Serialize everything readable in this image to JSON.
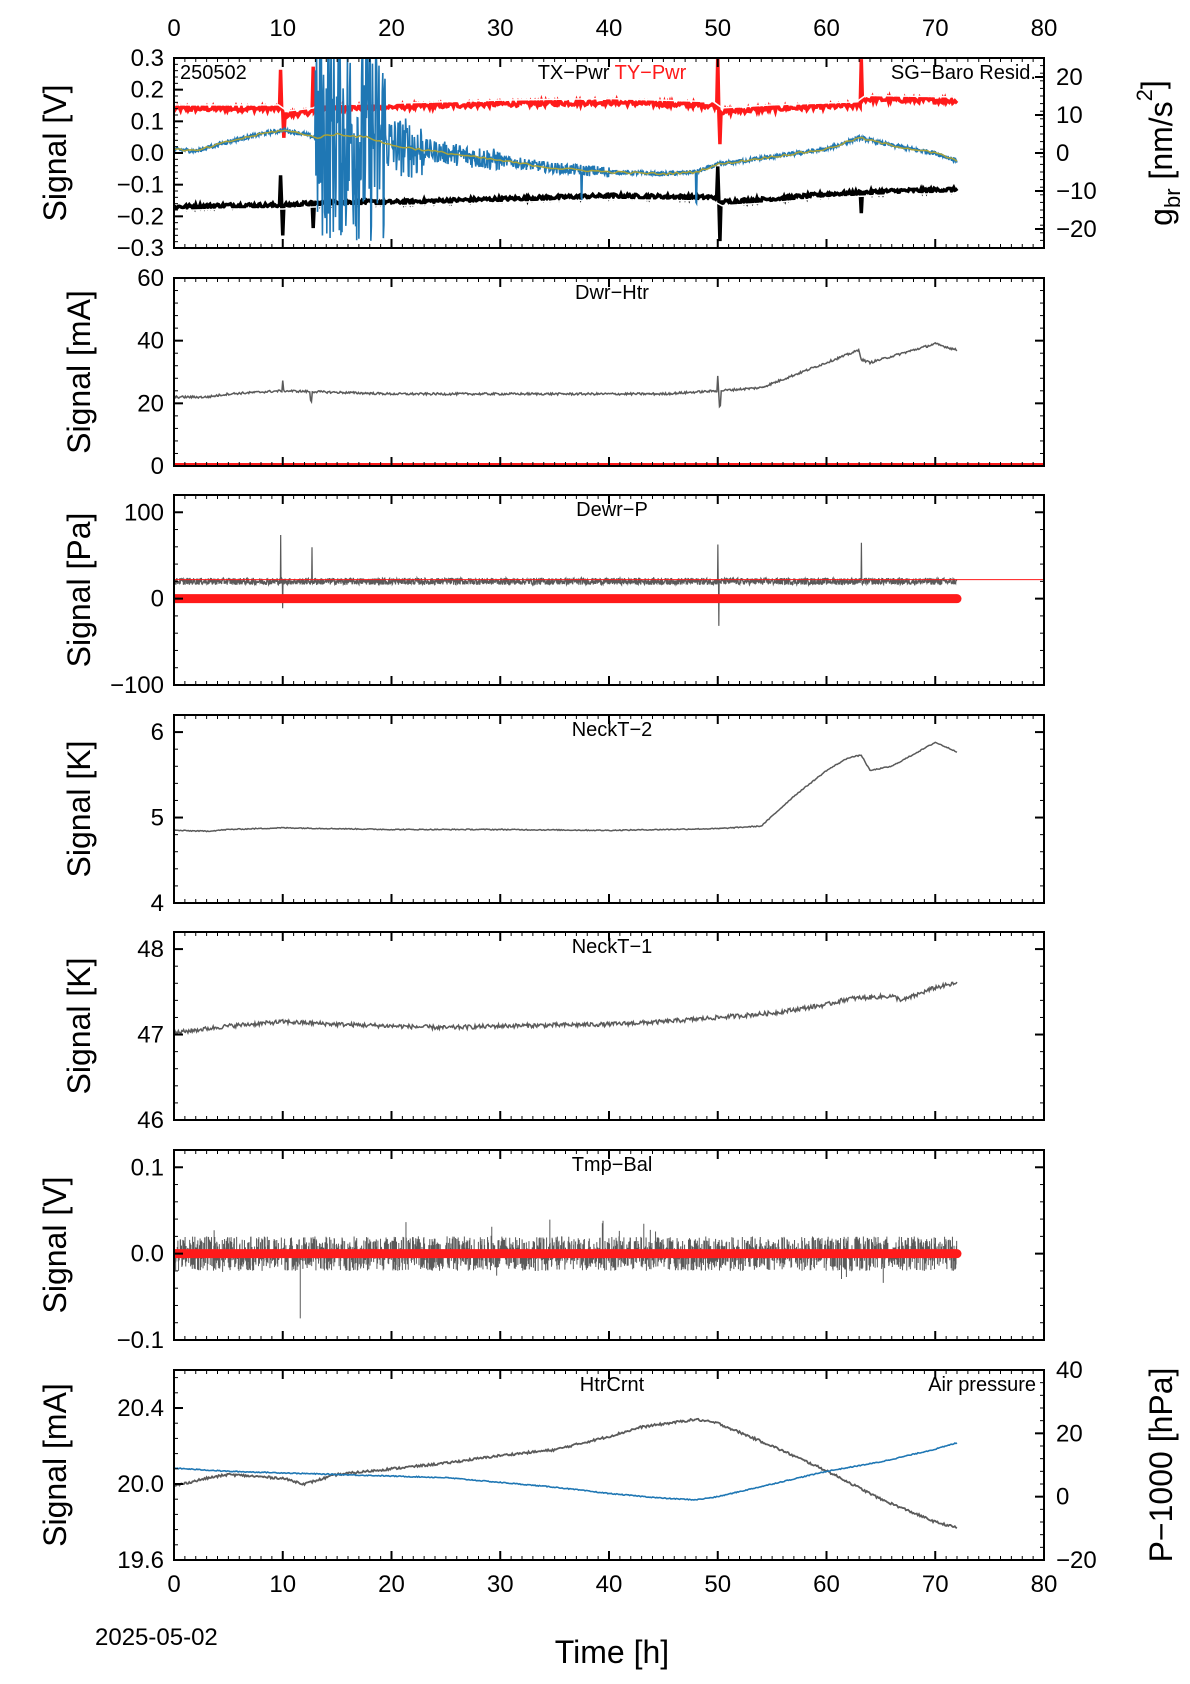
{
  "figure": {
    "date_label": "2025-05-02",
    "x_label": "Time [h]",
    "x_range": [
      0,
      80
    ],
    "x_ticks": [
      0,
      10,
      20,
      30,
      40,
      50,
      60,
      70,
      80
    ]
  },
  "colors": {
    "gray": "#5a5a5a",
    "red": "#ff1a1a",
    "blue": "#1f77b4",
    "olive": "#a8a23a",
    "black": "#000000",
    "white": "#ffffff"
  },
  "chart_data": [
    {
      "id": "p1",
      "type": "line",
      "station_label": "250502",
      "titles": [
        {
          "text": "TX−Pwr",
          "color": "#000000"
        },
        {
          "text": "TY−Pwr",
          "color": "#ff1a1a"
        }
      ],
      "right_title": "SG−Baro Resid.",
      "ylabel": "Signal [V]",
      "ylim": [
        -0.3,
        0.3
      ],
      "yticks": [
        -0.3,
        -0.2,
        -0.1,
        0.0,
        0.1,
        0.2,
        0.3
      ],
      "ytick_labels": [
        "−0.3",
        "−0.2",
        "−0.1",
        "0.0",
        "0.1",
        "0.2",
        "0.3"
      ],
      "y2label_main": "g",
      "y2label_sub": "br",
      "y2label_unit": " [nm/s",
      "y2label_sup": "2",
      "y2label_end": "]",
      "y2lim": [
        -25,
        25
      ],
      "y2ticks": [
        -20,
        -10,
        0,
        10,
        20
      ],
      "y2tick_labels": [
        "−20",
        "−10",
        "0",
        "10",
        "20"
      ],
      "series": [
        {
          "name": "TY−Pwr",
          "color": "#ff1a1a",
          "x": [
            0,
            5,
            9.8,
            10.2,
            12.8,
            13.2,
            20,
            30,
            40,
            49.8,
            50.2,
            55,
            63,
            63.4,
            72
          ],
          "y": [
            0.14,
            0.14,
            0.14,
            0.12,
            0.13,
            0.14,
            0.145,
            0.155,
            0.16,
            0.15,
            0.13,
            0.14,
            0.15,
            0.17,
            0.165
          ]
        },
        {
          "name": "TX−Pwr",
          "color": "#000000",
          "x": [
            0,
            5,
            10,
            12,
            15,
            20,
            30,
            40,
            49.8,
            50.2,
            55,
            60,
            63,
            66,
            72
          ],
          "y": [
            -0.17,
            -0.165,
            -0.165,
            -0.16,
            -0.155,
            -0.155,
            -0.145,
            -0.135,
            -0.14,
            -0.155,
            -0.145,
            -0.13,
            -0.125,
            -0.12,
            -0.115
          ]
        },
        {
          "name": "SG−Baro Resid.",
          "color": "#1f77b4",
          "axis": "right",
          "x": [
            0,
            2,
            5,
            8,
            10,
            12,
            13,
            15,
            18,
            20,
            25,
            30,
            35,
            40,
            45,
            48,
            50,
            55,
            60,
            63,
            66,
            70,
            72
          ],
          "y": [
            1,
            0.5,
            3,
            5,
            6,
            5,
            4,
            5,
            4,
            2,
            0,
            -2,
            -4,
            -5,
            -5.5,
            -5,
            -3,
            -1,
            1,
            4,
            2,
            0,
            -2
          ]
        }
      ]
    },
    {
      "id": "p2",
      "type": "line",
      "title": "Dwr−Htr",
      "ylabel": "Signal [mA]",
      "ylim": [
        0,
        60
      ],
      "yticks": [
        0,
        20,
        40,
        60
      ],
      "ytick_labels": [
        "0",
        "20",
        "40",
        "60"
      ],
      "series": [
        {
          "color": "#5a5a5a",
          "x": [
            0,
            3,
            5,
            10,
            15,
            20,
            30,
            40,
            45,
            50,
            54,
            57,
            60,
            63,
            63.2,
            64,
            66,
            70,
            72
          ],
          "y": [
            22,
            22,
            23,
            24,
            23.5,
            23,
            23,
            23,
            23,
            24,
            25,
            29,
            33,
            37,
            34,
            33,
            35,
            39,
            37
          ]
        },
        {
          "color": "#ff1a1a",
          "x": [
            0,
            80
          ],
          "y": [
            0,
            0
          ]
        }
      ]
    },
    {
      "id": "p3",
      "type": "line",
      "title": "Dewr−P",
      "ylabel": "Signal [Pa]",
      "ylim": [
        -100,
        120
      ],
      "yticks": [
        -100,
        0,
        100
      ],
      "ytick_labels": [
        "−100",
        "0",
        "100"
      ],
      "series": [
        {
          "color": "#5a5a5a",
          "x": [
            0,
            72
          ],
          "y": [
            20,
            20
          ]
        },
        {
          "color": "#ff1a1a",
          "x": [
            0,
            80
          ],
          "y": [
            22,
            22
          ]
        },
        {
          "color": "#ff1a1a",
          "x": [
            0,
            72
          ],
          "y": [
            0,
            0
          ]
        }
      ]
    },
    {
      "id": "p4",
      "type": "line",
      "title": "NeckT−2",
      "ylabel": "Signal [K]",
      "ylim": [
        4,
        6.2
      ],
      "yticks": [
        4,
        5,
        6
      ],
      "ytick_labels": [
        "4",
        "5",
        "6"
      ],
      "series": [
        {
          "color": "#5a5a5a",
          "x": [
            0,
            3,
            5,
            10,
            15,
            20,
            30,
            40,
            45,
            50,
            54,
            57,
            60,
            62,
            63.2,
            64,
            66,
            70,
            72
          ],
          "y": [
            4.85,
            4.84,
            4.86,
            4.88,
            4.87,
            4.86,
            4.86,
            4.85,
            4.86,
            4.87,
            4.9,
            5.25,
            5.55,
            5.7,
            5.73,
            5.55,
            5.6,
            5.88,
            5.77
          ]
        }
      ]
    },
    {
      "id": "p5",
      "type": "line",
      "title": "NeckT−1",
      "ylabel": "Signal [K]",
      "ylim": [
        46,
        48.2
      ],
      "yticks": [
        46,
        47,
        48
      ],
      "ytick_labels": [
        "46",
        "47",
        "48"
      ],
      "series": [
        {
          "color": "#5a5a5a",
          "x": [
            0,
            5,
            10,
            15,
            20,
            25,
            30,
            40,
            45,
            50,
            55,
            60,
            62,
            66,
            67,
            70,
            72
          ],
          "y": [
            47.02,
            47.1,
            47.15,
            47.12,
            47.1,
            47.08,
            47.1,
            47.12,
            47.15,
            47.2,
            47.25,
            47.35,
            47.42,
            47.45,
            47.4,
            47.55,
            47.6
          ]
        }
      ]
    },
    {
      "id": "p6",
      "type": "line",
      "title": "Tmp−Bal",
      "ylabel": "Signal [V]",
      "ylim": [
        -0.1,
        0.12
      ],
      "yticks": [
        -0.1,
        0.0,
        0.1
      ],
      "ytick_labels": [
        "−0.1",
        "0.0",
        "0.1"
      ],
      "series": [
        {
          "color": "#5a5a5a",
          "x": [
            0,
            72
          ],
          "y": [
            0,
            0
          ]
        },
        {
          "color": "#ff1a1a",
          "x": [
            0,
            72
          ],
          "y": [
            0,
            0
          ]
        }
      ]
    },
    {
      "id": "p7",
      "type": "line",
      "title": "HtrCrnt",
      "right_title": "Air pressure",
      "ylabel": "Signal [mA]",
      "ylim": [
        19.6,
        20.6
      ],
      "yticks": [
        19.6,
        20.0,
        20.4
      ],
      "ytick_labels": [
        "19.6",
        "20.0",
        "20.4"
      ],
      "y2label": "P−1000 [hPa]",
      "y2lim": [
        -20,
        40
      ],
      "y2ticks": [
        -20,
        0,
        20,
        40
      ],
      "y2tick_labels": [
        "−20",
        "0",
        "20",
        "40"
      ],
      "series": [
        {
          "color": "#5a5a5a",
          "x": [
            0,
            3,
            5,
            10,
            12,
            15,
            20,
            25,
            30,
            35,
            40,
            43,
            48,
            50,
            55,
            60,
            65,
            70,
            72
          ],
          "y": [
            19.99,
            20.03,
            20.05,
            20.03,
            20.0,
            20.05,
            20.08,
            20.11,
            20.15,
            20.18,
            20.25,
            20.3,
            20.34,
            20.32,
            20.2,
            20.07,
            19.92,
            19.8,
            19.77
          ]
        },
        {
          "color": "#1f77b4",
          "axis": "right",
          "x": [
            0,
            5,
            10,
            15,
            20,
            25,
            30,
            35,
            40,
            45,
            48,
            50,
            55,
            60,
            65,
            70,
            72
          ],
          "y": [
            9,
            8,
            7.5,
            7,
            6.5,
            6,
            4.5,
            3,
            1,
            -0.5,
            -1,
            0,
            4,
            8,
            11,
            15,
            17
          ]
        }
      ]
    }
  ]
}
